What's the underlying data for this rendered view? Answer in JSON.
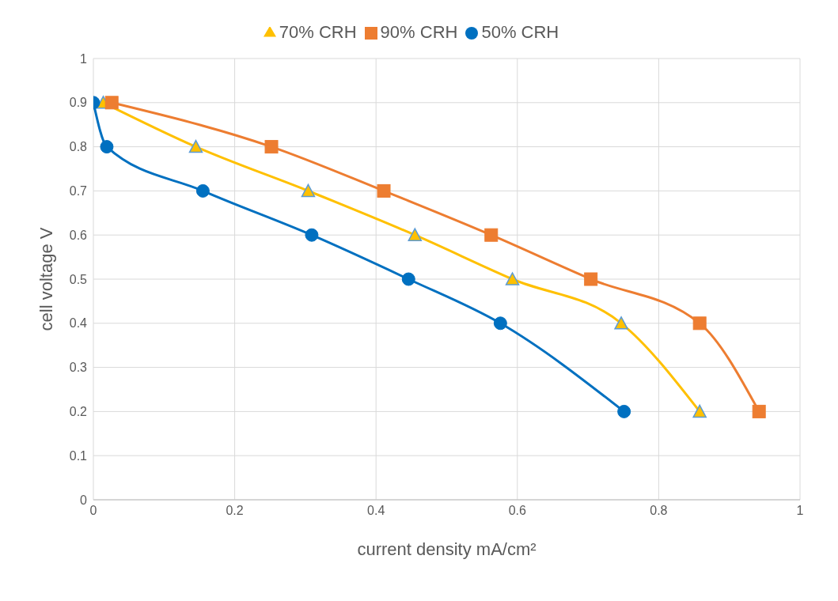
{
  "chart_data": {
    "type": "line",
    "xlabel": "current density mA/cm²",
    "ylabel": "cell voltage V",
    "xlim": [
      0,
      1
    ],
    "xticks": [
      0,
      0.2,
      0.4,
      0.6,
      0.8,
      1
    ],
    "ylim": [
      0,
      1
    ],
    "yticks": [
      0,
      0.1,
      0.2,
      0.3,
      0.4,
      0.5,
      0.6,
      0.7,
      0.8,
      0.9,
      1
    ],
    "grid": true,
    "legend": "top",
    "series": [
      {
        "name": "70% CRH",
        "color": "#ffc000",
        "marker": "triangle",
        "x": [
          0.014,
          0.145,
          0.304,
          0.455,
          0.593,
          0.747,
          0.858
        ],
        "values": [
          0.9,
          0.8,
          0.7,
          0.6,
          0.5,
          0.4,
          0.2
        ]
      },
      {
        "name": "90% CRH",
        "color": "#ed7d31",
        "marker": "square",
        "x": [
          0.026,
          0.252,
          0.411,
          0.563,
          0.704,
          0.858,
          0.942
        ],
        "values": [
          0.9,
          0.8,
          0.7,
          0.6,
          0.5,
          0.4,
          0.2
        ]
      },
      {
        "name": "50% CRH",
        "color": "#0070c0",
        "marker": "circle",
        "x": [
          0,
          0.019,
          0.155,
          0.309,
          0.446,
          0.576,
          0.751
        ],
        "values": [
          0.9,
          0.8,
          0.7,
          0.6,
          0.5,
          0.4,
          0.2
        ]
      }
    ]
  }
}
